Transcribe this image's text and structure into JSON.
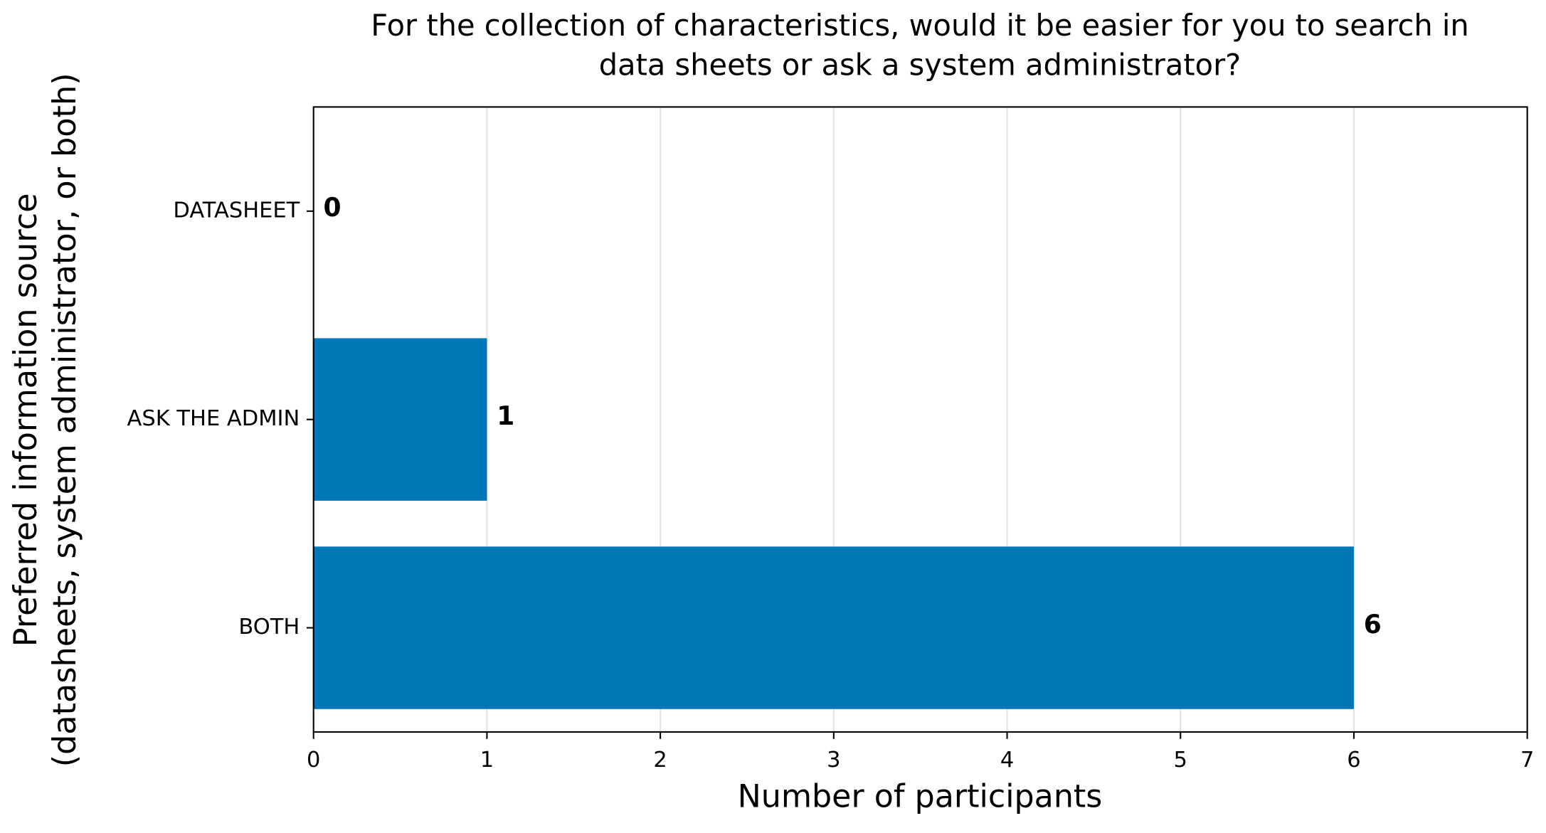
{
  "chart_data": {
    "type": "barh",
    "title": [
      "For the collection of characteristics, would it be easier for you to search in",
      "data sheets or ask a system administrator?"
    ],
    "xlabel": "Number of participants",
    "ylabel": [
      "Preferred information source",
      "(datasheets, system administrator, or both)"
    ],
    "categories": [
      "DATASHEET",
      "ASK THE ADMIN",
      "BOTH"
    ],
    "values": [
      0,
      1,
      6
    ],
    "color": "#0077b6",
    "xlim": [
      0,
      7
    ],
    "xticks": [
      0,
      1,
      2,
      3,
      4,
      5,
      6,
      7
    ],
    "grid": true
  }
}
